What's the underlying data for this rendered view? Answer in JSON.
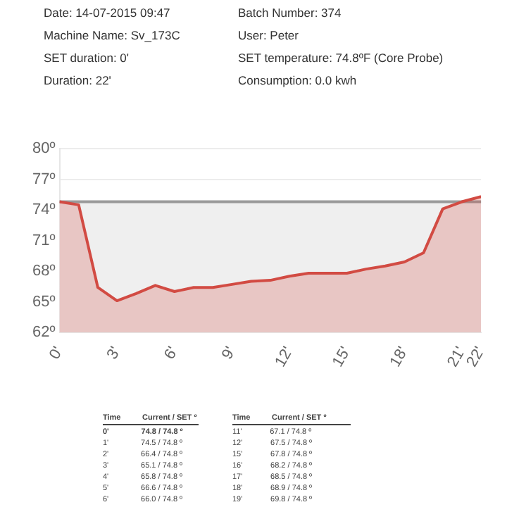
{
  "chart_data": [
    {
      "type": "other",
      "annotations": [
        "Date: 14-07-2015 09:47",
        "Batch Number:   374",
        "Machine Name: Sv_173C",
        "User:  Peter",
        "SET duration: 0'",
        "SET temperature: 74.8ºF (Core Probe)",
        "Duration: 22'",
        "Consumption: 0.0 kwh"
      ]
    },
    {
      "type": "area",
      "x": [
        0,
        1,
        2,
        3,
        4,
        5,
        6,
        7,
        8,
        9,
        10,
        11,
        12,
        13,
        14,
        15,
        16,
        17,
        18,
        19,
        20,
        21,
        22
      ],
      "series": [
        {
          "color": "#d24b43",
          "values": [
            74.8,
            74.5,
            66.4,
            65.1,
            65.8,
            66.6,
            66.0,
            66.4,
            66.4,
            66.7,
            67.0,
            67.1,
            67.5,
            67.8,
            67.8,
            67.8,
            68.2,
            68.5,
            68.9,
            69.8,
            74.1,
            74.8,
            75.3
          ]
        }
      ],
      "xlim": [
        0,
        22
      ],
      "xticks": [
        {
          "value": 0,
          "label": "0'"
        },
        {
          "value": 3,
          "label": "3'"
        },
        {
          "value": 6,
          "label": "6'"
        },
        {
          "value": 9,
          "label": "9'"
        },
        {
          "value": 12,
          "label": "12'"
        },
        {
          "value": 15,
          "label": "15'"
        },
        {
          "value": 18,
          "label": "18'"
        },
        {
          "value": 21,
          "label": "21'"
        },
        {
          "value": 22,
          "label": "22'"
        }
      ],
      "ylim": [
        62,
        80
      ],
      "yticks": [
        {
          "value": 62,
          "label": "62º"
        },
        {
          "value": 65,
          "label": "65º"
        },
        {
          "value": 68,
          "label": "68º"
        },
        {
          "value": 71,
          "label": "71º"
        },
        {
          "value": 74,
          "label": "74º"
        },
        {
          "value": 77,
          "label": "77º"
        },
        {
          "value": 80,
          "label": "80º"
        }
      ],
      "ref_lines": [
        {
          "axis": "y",
          "value": 74.8,
          "color": "#9a9a9a"
        }
      ],
      "bands": [
        {
          "axis": "y",
          "from": 62,
          "to": 74.8,
          "color": "#efefef"
        }
      ],
      "grid": "y",
      "marker": "none",
      "line_style": "solid"
    },
    {
      "type": "other",
      "annotations": [
        "Time          Current / SET º",
        "Time          Current / SET º",
        "0'               74.8 / 74.8 º",
        "11'             67.1 / 74.8 º",
        "1'               74.5 / 74.8 º",
        "12'             67.5 / 74.8 º",
        "2'               66.4 / 74.8 º",
        "15'             67.8 / 74.8 º",
        "3'               65.1 / 74.8 º",
        "16'             68.2 / 74.8 º",
        "4'               65.8 / 74.8 º",
        "17'             68.5 / 74.8 º",
        "5'               66.6 / 74.8 º",
        "18'             68.9 / 74.8 º",
        "6'               66.0 / 74.8 º",
        "19'             69.8 / 74.8 º"
      ]
    }
  ]
}
